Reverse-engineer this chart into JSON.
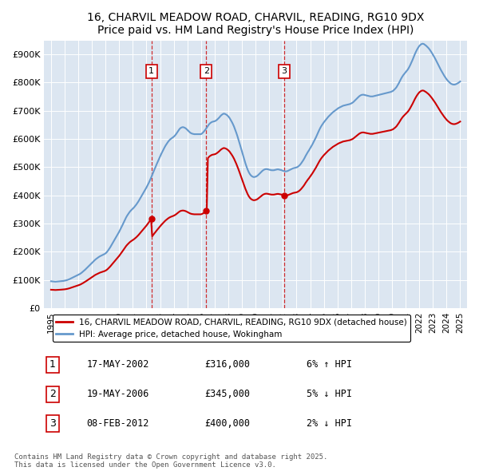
{
  "title": "16, CHARVIL MEADOW ROAD, CHARVIL, READING, RG10 9DX",
  "subtitle": "Price paid vs. HM Land Registry's House Price Index (HPI)",
  "bg_color": "#dce6f1",
  "line_color_property": "#cc0000",
  "line_color_hpi": "#6699cc",
  "transactions": [
    {
      "date": 2002.37,
      "price": 316000,
      "label": "1"
    },
    {
      "date": 2006.38,
      "price": 345000,
      "label": "2"
    },
    {
      "date": 2012.1,
      "price": 400000,
      "label": "3"
    }
  ],
  "legend_property": "16, CHARVIL MEADOW ROAD, CHARVIL, READING, RG10 9DX (detached house)",
  "legend_hpi": "HPI: Average price, detached house, Wokingham",
  "table_entries": [
    {
      "num": "1",
      "date": "17-MAY-2002",
      "price": "£316,000",
      "pct": "6%",
      "dir": "↑",
      "rel": "HPI"
    },
    {
      "num": "2",
      "date": "19-MAY-2006",
      "price": "£345,000",
      "pct": "5%",
      "dir": "↓",
      "rel": "HPI"
    },
    {
      "num": "3",
      "date": "08-FEB-2012",
      "price": "£400,000",
      "pct": "2%",
      "dir": "↓",
      "rel": "HPI"
    }
  ],
  "footer": "Contains HM Land Registry data © Crown copyright and database right 2025.\nThis data is licensed under the Open Government Licence v3.0.",
  "ylim": [
    0,
    950000
  ],
  "yticks": [
    0,
    100000,
    200000,
    300000,
    400000,
    500000,
    600000,
    700000,
    800000,
    900000
  ],
  "ytick_labels": [
    "£0",
    "£100K",
    "£200K",
    "£300K",
    "£400K",
    "£500K",
    "£600K",
    "£700K",
    "£800K",
    "£900K"
  ],
  "xlim": [
    1994.5,
    2025.5
  ],
  "xticks": [
    1995,
    1996,
    1997,
    1998,
    1999,
    2000,
    2001,
    2002,
    2003,
    2004,
    2005,
    2006,
    2007,
    2008,
    2009,
    2010,
    2011,
    2012,
    2013,
    2014,
    2015,
    2016,
    2017,
    2018,
    2019,
    2020,
    2021,
    2022,
    2023,
    2024,
    2025
  ],
  "hpi_monthly": [
    95000,
    94500,
    94200,
    93800,
    93500,
    93800,
    94200,
    94600,
    95000,
    95400,
    95800,
    96200,
    97000,
    98000,
    99000,
    100500,
    102000,
    104000,
    106000,
    108000,
    110000,
    112000,
    114000,
    116000,
    118000,
    120000,
    122500,
    125500,
    129000,
    132500,
    136000,
    140000,
    144000,
    148000,
    152000,
    156000,
    160000,
    164000,
    168000,
    172000,
    175000,
    178000,
    181000,
    183500,
    185500,
    187500,
    189500,
    191500,
    194000,
    198000,
    203000,
    209000,
    215000,
    222000,
    229000,
    236000,
    243000,
    250000,
    257000,
    264000,
    271000,
    279000,
    287000,
    295500,
    304000,
    313000,
    321000,
    328000,
    334000,
    340000,
    345000,
    349000,
    353000,
    357000,
    362000,
    367000,
    373000,
    379000,
    386000,
    393000,
    400000,
    407000,
    414000,
    421000,
    428000,
    436000,
    444000,
    453000,
    462000,
    472000,
    482000,
    492000,
    501000,
    511000,
    520000,
    529000,
    538000,
    547000,
    555000,
    563000,
    571000,
    578000,
    584000,
    590000,
    595000,
    599000,
    602000,
    605000,
    608000,
    612000,
    617000,
    623000,
    629000,
    635000,
    639000,
    641000,
    642000,
    641000,
    639000,
    636000,
    632000,
    628000,
    624000,
    621000,
    619000,
    618000,
    617000,
    617000,
    617000,
    617000,
    617000,
    617000,
    617000,
    620000,
    624000,
    629000,
    634000,
    640000,
    646000,
    652000,
    656000,
    659000,
    661000,
    662000,
    663000,
    665000,
    668000,
    672000,
    676000,
    681000,
    685000,
    688000,
    690000,
    689000,
    687000,
    684000,
    680000,
    675000,
    668000,
    661000,
    653000,
    644000,
    633000,
    622000,
    610000,
    597000,
    583000,
    569000,
    555000,
    541000,
    527000,
    514000,
    502000,
    491000,
    482000,
    475000,
    470000,
    467000,
    465000,
    465000,
    466000,
    468000,
    471000,
    475000,
    479000,
    483000,
    487000,
    490000,
    492000,
    493000,
    493000,
    492000,
    491000,
    490000,
    489000,
    489000,
    489000,
    490000,
    491000,
    492000,
    492000,
    491000,
    490000,
    489000,
    487000,
    486000,
    485000,
    485000,
    486000,
    488000,
    490000,
    492000,
    494000,
    496000,
    497000,
    498000,
    499000,
    501000,
    504000,
    508000,
    513000,
    519000,
    525000,
    532000,
    540000,
    547000,
    554000,
    560000,
    567000,
    574000,
    581000,
    589000,
    597000,
    605000,
    614000,
    623000,
    632000,
    640000,
    647000,
    653000,
    659000,
    664000,
    669000,
    674000,
    679000,
    683000,
    687000,
    691000,
    695000,
    698000,
    701000,
    704000,
    707000,
    710000,
    712000,
    714000,
    716000,
    718000,
    719000,
    720000,
    721000,
    722000,
    723000,
    724000,
    726000,
    728000,
    731000,
    735000,
    739000,
    743000,
    747000,
    751000,
    754000,
    756000,
    757000,
    757000,
    756000,
    755000,
    754000,
    753000,
    752000,
    751000,
    751000,
    751000,
    752000,
    753000,
    754000,
    755000,
    756000,
    757000,
    758000,
    759000,
    760000,
    761000,
    762000,
    763000,
    764000,
    765000,
    766000,
    767000,
    769000,
    771000,
    775000,
    779000,
    784000,
    791000,
    798000,
    806000,
    814000,
    821000,
    827000,
    832000,
    837000,
    842000,
    847000,
    854000,
    862000,
    871000,
    880000,
    890000,
    900000,
    909000,
    917000,
    924000,
    930000,
    934000,
    937000,
    938000,
    937000,
    934000,
    931000,
    927000,
    923000,
    918000,
    912000,
    906000,
    899000,
    892000,
    885000,
    877000,
    869000,
    861000,
    853000,
    845000,
    838000,
    831000,
    824000,
    818000,
    812000,
    807000,
    803000,
    799000,
    796000,
    794000,
    793000,
    793000,
    794000,
    796000,
    798000,
    801000,
    804000
  ]
}
